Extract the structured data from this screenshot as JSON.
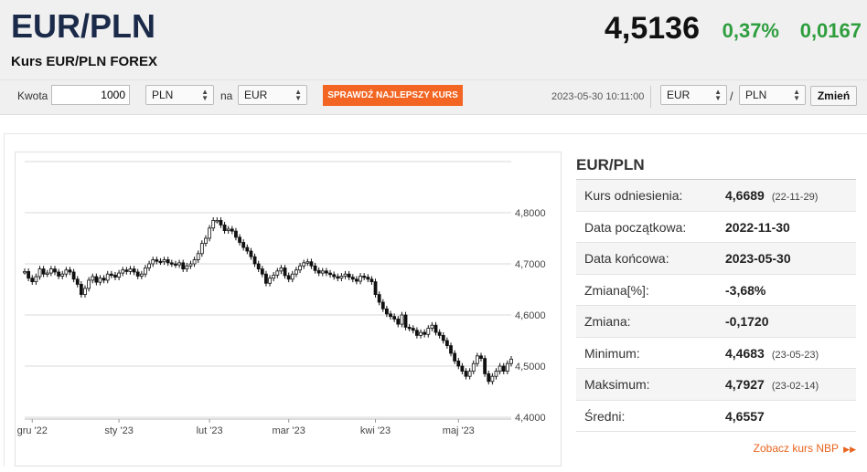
{
  "header": {
    "pair": "EUR/PLN",
    "subtitle": "Kurs EUR/PLN FOREX",
    "price": "4,5136",
    "change_pct": "0,37%",
    "change_abs": "0,0167"
  },
  "converter": {
    "amount_label": "Kwota",
    "amount_value": "1000",
    "from_currency": "PLN",
    "to_label": "na",
    "to_currency": "EUR",
    "best_rate_button": "SPRAWDŹ NAJLEPSZY KURS",
    "timestamp": "2023-05-30 10:11:00",
    "pair_base": "EUR",
    "pair_separator": "/",
    "pair_quote": "PLN",
    "change_button": "Zmień"
  },
  "stats": {
    "title": "EUR/PLN",
    "rows": [
      {
        "key": "Kurs odniesienia:",
        "value": "4,6689",
        "date": "(22-11-29)"
      },
      {
        "key": "Data początkowa:",
        "value": "2022-11-30",
        "date": ""
      },
      {
        "key": "Data końcowa:",
        "value": "2023-05-30",
        "date": ""
      },
      {
        "key": "Zmiana[%]:",
        "value": "-3,68%",
        "date": ""
      },
      {
        "key": "Zmiana:",
        "value": "-0,1720",
        "date": ""
      },
      {
        "key": "Minimum:",
        "value": "4,4683",
        "date": "(23-05-23)"
      },
      {
        "key": "Maksimum:",
        "value": "4,7927",
        "date": "(23-02-14)"
      },
      {
        "key": "Średni:",
        "value": "4,6557",
        "date": ""
      }
    ],
    "nbp_link": "Zobacz kurs NBP",
    "nbp_arrow": "▶▶"
  },
  "colors": {
    "accent_orange": "#f26522",
    "positive_green": "#2e9e3e",
    "title_navy": "#1c2a4a"
  },
  "chart_data": {
    "type": "line",
    "y_ticks": [
      "4,8000",
      "4,7000",
      "4,6000",
      "4,5000",
      "4,4000"
    ],
    "y_tick_values": [
      4.8,
      4.7,
      4.6,
      4.5,
      4.4
    ],
    "ylim": [
      4.4,
      4.9
    ],
    "x_ticks": [
      "gru '22",
      "sty '23",
      "lut '23",
      "mar '23",
      "kwi '23",
      "maj '23"
    ],
    "x_tick_positions": [
      2,
      25,
      49,
      70,
      93,
      115
    ],
    "x_count": 130,
    "grid": true,
    "series": [
      {
        "values": [
          4.685,
          4.672,
          4.665,
          4.675,
          4.69,
          4.68,
          4.682,
          4.69,
          4.684,
          4.676,
          4.68,
          4.688,
          4.684,
          4.67,
          4.66,
          4.64,
          4.652,
          4.668,
          4.675,
          4.664,
          4.672,
          4.668,
          4.68,
          4.678,
          4.674,
          4.682,
          4.688,
          4.685,
          4.69,
          4.684,
          4.676,
          4.68,
          4.692,
          4.7,
          4.708,
          4.705,
          4.704,
          4.708,
          4.702,
          4.7,
          4.698,
          4.702,
          4.69,
          4.696,
          4.7,
          4.708,
          4.72,
          4.74,
          4.75,
          4.77,
          4.785,
          4.785,
          4.776,
          4.765,
          4.768,
          4.764,
          4.752,
          4.742,
          4.732,
          4.725,
          4.714,
          4.7,
          4.69,
          4.68,
          4.662,
          4.672,
          4.678,
          4.686,
          4.692,
          4.677,
          4.67,
          4.68,
          4.688,
          4.696,
          4.702,
          4.704,
          4.696,
          4.687,
          4.682,
          4.686,
          4.682,
          4.679,
          4.675,
          4.672,
          4.676,
          4.68,
          4.674,
          4.67,
          4.666,
          4.676,
          4.674,
          4.67,
          4.665,
          4.64,
          4.625,
          4.612,
          4.602,
          4.597,
          4.592,
          4.582,
          4.6,
          4.576,
          4.574,
          4.57,
          4.56,
          4.566,
          4.562,
          4.574,
          4.58,
          4.566,
          4.56,
          4.55,
          4.54,
          4.525,
          4.51,
          4.5,
          4.49,
          4.48,
          4.49,
          4.505,
          4.52,
          4.515,
          4.485,
          4.47,
          4.48,
          4.49,
          4.5,
          4.49,
          4.505,
          4.5136
        ]
      }
    ]
  }
}
